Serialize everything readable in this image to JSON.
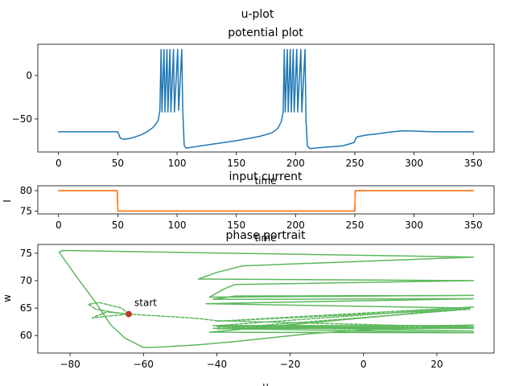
{
  "figure": {
    "suptitle": "u-plot"
  },
  "chart_data": [
    {
      "id": "potential",
      "type": "line",
      "title": "potential plot",
      "xlabel": "time",
      "ylabel": "",
      "xlim": [
        -17.5,
        367.5
      ],
      "ylim": [
        -88,
        36
      ],
      "xticks": [
        0,
        50,
        100,
        150,
        200,
        250,
        300,
        350
      ],
      "yticks": [
        -50,
        0
      ],
      "grid": false,
      "series": [
        {
          "color": "#1f77b4",
          "style": "solid",
          "points": [
            [
              0,
              -64.8
            ],
            [
              50,
              -64.8
            ],
            [
              52,
              -72
            ],
            [
              55,
              -73.5
            ],
            [
              60,
              -72.5
            ],
            [
              65,
              -70.5
            ],
            [
              70,
              -68
            ],
            [
              75,
              -64.5
            ],
            [
              80,
              -59.5
            ],
            [
              84,
              -52
            ],
            [
              85.5,
              -40
            ],
            [
              86.5,
              30
            ],
            [
              87.3,
              -42
            ],
            [
              89,
              30
            ],
            [
              89.8,
              -42
            ],
            [
              91.5,
              30
            ],
            [
              92.3,
              -42
            ],
            [
              94,
              30
            ],
            [
              94.8,
              -42
            ],
            [
              97,
              30
            ],
            [
              97.8,
              -42
            ],
            [
              100.5,
              30
            ],
            [
              101.3,
              -40
            ],
            [
              104,
              30
            ],
            [
              104.8,
              -40
            ],
            [
              106,
              -80
            ],
            [
              107.5,
              -83.5
            ],
            [
              110,
              -83
            ],
            [
              130,
              -79
            ],
            [
              150,
              -75
            ],
            [
              170,
              -70
            ],
            [
              180,
              -66
            ],
            [
              185,
              -61
            ],
            [
              188,
              -53
            ],
            [
              189.5,
              -42
            ],
            [
              190.5,
              30
            ],
            [
              191.3,
              -42
            ],
            [
              193,
              30
            ],
            [
              193.8,
              -42
            ],
            [
              195.5,
              30
            ],
            [
              196.3,
              -42
            ],
            [
              198,
              30
            ],
            [
              198.8,
              -42
            ],
            [
              201,
              30
            ],
            [
              201.8,
              -42
            ],
            [
              204.5,
              30
            ],
            [
              205.3,
              -42
            ],
            [
              208,
              30
            ],
            [
              208.8,
              -52
            ],
            [
              210,
              -81
            ],
            [
              212,
              -84
            ],
            [
              220,
              -83
            ],
            [
              240,
              -81
            ],
            [
              249.5,
              -77
            ],
            [
              250.5,
              -73
            ],
            [
              252,
              -70.5
            ],
            [
              260,
              -68.5
            ],
            [
              270,
              -67
            ],
            [
              280,
              -65
            ],
            [
              290,
              -63.8
            ],
            [
              300,
              -63.9
            ],
            [
              310,
              -64.5
            ],
            [
              320,
              -64.8
            ],
            [
              350,
              -64.8
            ]
          ]
        }
      ]
    },
    {
      "id": "input",
      "type": "line",
      "title": "input current",
      "xlabel": "time",
      "ylabel": "I",
      "xlim": [
        -17.5,
        367.5
      ],
      "ylim": [
        74.3,
        81.2
      ],
      "xticks": [
        0,
        50,
        100,
        150,
        200,
        250,
        300,
        350
      ],
      "yticks": [
        75,
        80
      ],
      "grid": false,
      "series": [
        {
          "color": "#d62728",
          "style": "solid",
          "points": [
            [
              0,
              80
            ],
            [
              49.6,
              80
            ],
            [
              50,
              75
            ],
            [
              250,
              75
            ],
            [
              250.4,
              80
            ],
            [
              350,
              80
            ]
          ]
        },
        {
          "color": "#ff7f0e",
          "style": "solid",
          "points": [
            [
              0,
              80
            ],
            [
              49.6,
              80
            ],
            [
              50,
              75
            ],
            [
              250,
              75
            ],
            [
              250.4,
              80
            ],
            [
              350,
              80
            ]
          ]
        }
      ]
    },
    {
      "id": "phase",
      "type": "line",
      "title": "phase portrait",
      "xlabel": "u",
      "ylabel": "w",
      "xlim": [
        -88.8,
        35.6
      ],
      "ylim": [
        56.8,
        76.6
      ],
      "xticks": [
        -80,
        -60,
        -40,
        -20,
        0,
        20
      ],
      "yticks": [
        60,
        65,
        70,
        75
      ],
      "grid": false,
      "series": [
        {
          "color": "#5cb85c",
          "style": "solid",
          "points": [
            [
              -83,
              75.2
            ],
            [
              -78,
              70.5
            ],
            [
              -73,
              66
            ],
            [
              -69,
              62
            ],
            [
              -65,
              59.5
            ],
            [
              -60,
              57.8
            ],
            [
              -55,
              57.9
            ],
            [
              -45,
              58.3
            ],
            [
              -35,
              58.9
            ],
            [
              -25,
              59.6
            ],
            [
              -15,
              60.3
            ],
            [
              0,
              61
            ],
            [
              15,
              61.4
            ],
            [
              30,
              61.8
            ],
            [
              -41,
              61.8
            ],
            [
              30,
              61.3
            ],
            [
              -41,
              61.3
            ],
            [
              30,
              60.5
            ],
            [
              -42,
              60.6
            ],
            [
              29,
              65
            ],
            [
              -43,
              65.8
            ],
            [
              30,
              66.7
            ],
            [
              -41,
              66.6
            ],
            [
              -35,
              67.2
            ],
            [
              30,
              67.3
            ],
            [
              -42,
              67
            ],
            [
              -38,
              68.5
            ],
            [
              -35,
              69.3
            ],
            [
              30,
              70
            ],
            [
              -45,
              70.3
            ],
            [
              -40,
              71.5
            ],
            [
              -33,
              72.7
            ],
            [
              30,
              74.3
            ],
            [
              -82,
              75.5
            ],
            [
              -83,
              75.2
            ]
          ]
        },
        {
          "color": "#5cb85c",
          "style": "dashed",
          "points": [
            [
              -64,
              63.9
            ],
            [
              -68,
              64.2
            ],
            [
              -73,
              64.8
            ],
            [
              -75,
              65.7
            ],
            [
              -72,
              66
            ],
            [
              -66,
              65
            ],
            [
              -64,
              63.9
            ],
            [
              -70,
              63.5
            ],
            [
              -74,
              63.2
            ],
            [
              -70,
              64.3
            ],
            [
              -64,
              63.9
            ],
            [
              -45,
              63.1
            ],
            [
              -40,
              62.7
            ],
            [
              30,
              61.5
            ],
            [
              -40,
              61.6
            ],
            [
              30,
              60.8
            ],
            [
              -40,
              61.8
            ],
            [
              30,
              65.2
            ],
            [
              -40,
              62.6
            ],
            [
              29,
              64.8
            ],
            [
              -40,
              61.2
            ],
            [
              30,
              61.9
            ]
          ]
        }
      ],
      "annotations": [
        {
          "text": "start",
          "x": -64,
          "y": 63.9,
          "marker_color": "#c0392b"
        }
      ]
    }
  ]
}
